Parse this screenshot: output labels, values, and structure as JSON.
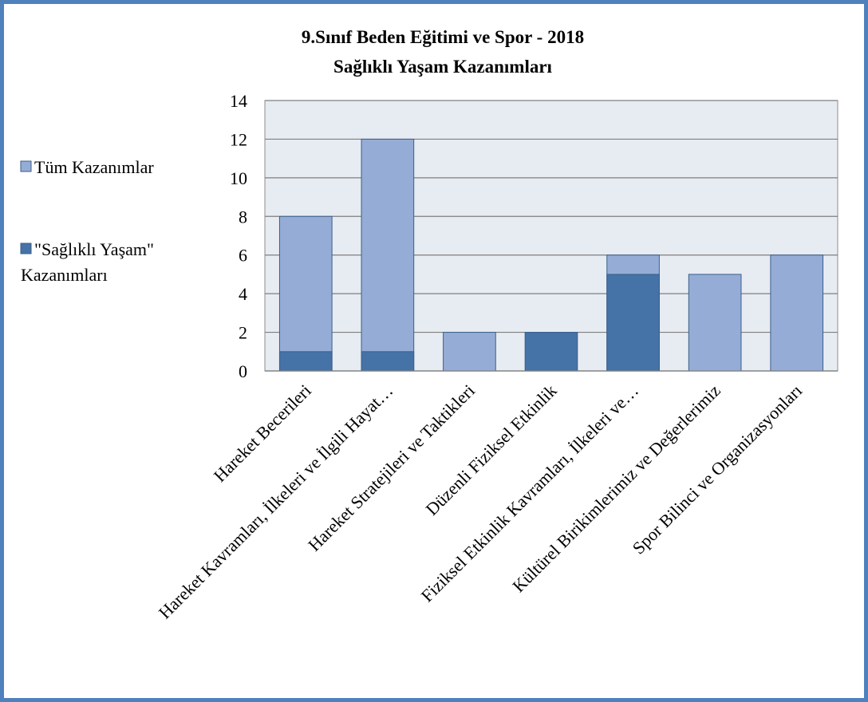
{
  "chart_data": {
    "type": "bar",
    "stacked": false,
    "title": "9.Sınıf Beden Eğitimi ve Spor - 2018",
    "subtitle": "Sağlıklı Yaşam Kazanımları",
    "categories": [
      "Hareket Becerileri",
      "Hareket Kavramları, İlkeleri ve İlgili Hayat…",
      "Hareket Stratejileri ve Taktikleri",
      "Düzenli Fiziksel Etkinlik",
      "Fiziksel Etkinlik Kavramları, İlkeleri ve…",
      "Kültürel Birikimlerimiz ve Değerlerimiz",
      "Spor Bilinci ve Organizasyonları"
    ],
    "series": [
      {
        "name": "Tüm Kazanımlar",
        "color": "#95add6",
        "values": [
          8,
          12,
          2,
          0,
          6,
          5,
          6
        ]
      },
      {
        "name": "\"Sağlıklı Yaşam\" Kazanımları",
        "color": "#4572a7",
        "values": [
          1,
          1,
          0,
          2,
          5,
          0,
          0
        ]
      }
    ],
    "y_ticks": [
      "0",
      "2",
      "4",
      "6",
      "8",
      "10",
      "12",
      "14"
    ],
    "ylim": [
      0,
      14
    ],
    "grid": true,
    "legend_position": "left",
    "plot_background": "#e7ebf2",
    "legend_lines": [
      [
        "Tüm Kazanımlar"
      ],
      [
        "\"Sağlıklı Yaşam\"",
        "Kazanımları"
      ]
    ]
  }
}
